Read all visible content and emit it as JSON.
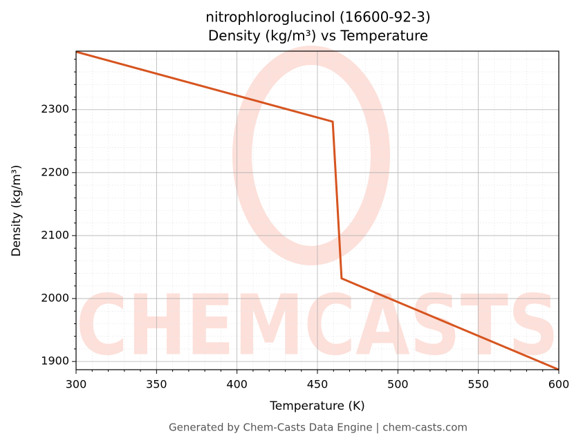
{
  "chart_data": {
    "type": "line",
    "title": "nitrophloroglucinol (16600-92-3)",
    "subtitle": "Density (kg/m³) vs Temperature",
    "x_label": "Temperature (K)",
    "y_label": "Density (kg/m³)",
    "watermark": "CHEMCASTS",
    "footer": "Generated by Chem-Casts Data Engine | chem-casts.com",
    "x": [
      300,
      459.5,
      465,
      600
    ],
    "series": [
      {
        "name": "Density",
        "color": "#d6541f",
        "values": [
          2392,
          2281,
          2032,
          1887
        ]
      }
    ],
    "xlim": [
      300,
      600
    ],
    "ylim": [
      1887,
      2393
    ],
    "xticks": [
      300,
      350,
      400,
      450,
      500,
      550,
      600
    ],
    "yticks": [
      1900,
      2000,
      2100,
      2200,
      2300
    ],
    "xminorticks": [
      310,
      320,
      330,
      340,
      360,
      370,
      380,
      390,
      410,
      420,
      430,
      440,
      460,
      470,
      480,
      490,
      510,
      520,
      530,
      540,
      560,
      570,
      580,
      590
    ],
    "yminorticks": [
      1920,
      1940,
      1960,
      1980,
      2020,
      2040,
      2060,
      2080,
      2120,
      2140,
      2160,
      2180,
      2220,
      2240,
      2260,
      2280,
      2320,
      2340,
      2360,
      2380
    ],
    "grid": true
  }
}
